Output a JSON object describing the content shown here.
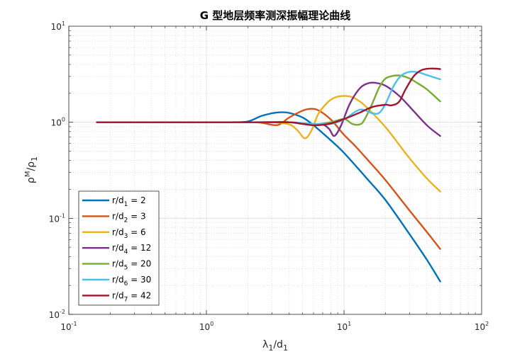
{
  "chart_data": {
    "type": "line",
    "title": "G 型地层频率测深振幅理论曲线",
    "xlabel": {
      "main": "λ",
      "sub1": "1",
      "mid": "/d",
      "sub2": "1"
    },
    "ylabel": {
      "main": "ρ",
      "sup": "M",
      "mid": "/ρ",
      "sub": "1"
    },
    "xscale": "log",
    "yscale": "log",
    "xlim": [
      0.1,
      100
    ],
    "ylim": [
      0.01,
      10
    ],
    "xticks": [
      {
        "value": 0.1,
        "base": "10",
        "exp": "-1"
      },
      {
        "value": 1,
        "base": "10",
        "exp": "0"
      },
      {
        "value": 10,
        "base": "10",
        "exp": "1"
      },
      {
        "value": 100,
        "base": "10",
        "exp": "2"
      }
    ],
    "yticks": [
      {
        "value": 0.01,
        "base": "10",
        "exp": "-2"
      },
      {
        "value": 0.1,
        "base": "10",
        "exp": "-1"
      },
      {
        "value": 1,
        "base": "10",
        "exp": "0"
      },
      {
        "value": 10,
        "base": "10",
        "exp": "1"
      }
    ],
    "grid": true,
    "legend_position": "bottom-left",
    "series": [
      {
        "label_main": "r/d",
        "label_sub": "1",
        "label_val": " = 2",
        "color": "#0072BD",
        "x": [
          0.16,
          0.5,
          1.0,
          1.5,
          2.0,
          2.5,
          3.0,
          3.5,
          4.0,
          5.0,
          6.0,
          8.0,
          10,
          15,
          20,
          30,
          40,
          50
        ],
        "y": [
          1.0,
          1.0,
          1.0,
          1.0,
          1.02,
          1.16,
          1.24,
          1.27,
          1.25,
          1.12,
          0.93,
          0.65,
          0.48,
          0.25,
          0.155,
          0.068,
          0.037,
          0.022
        ]
      },
      {
        "label_main": "r/d",
        "label_sub": "2",
        "label_val": " = 3",
        "color": "#D95319",
        "x": [
          0.16,
          0.5,
          1.0,
          2.0,
          2.5,
          3.0,
          3.4,
          4.0,
          5.0,
          5.7,
          6.5,
          8.0,
          10,
          12,
          15,
          20,
          30,
          40,
          50
        ],
        "y": [
          1.0,
          1.0,
          1.0,
          1.0,
          0.99,
          0.94,
          0.95,
          1.12,
          1.32,
          1.38,
          1.33,
          1.07,
          0.74,
          0.57,
          0.4,
          0.25,
          0.12,
          0.072,
          0.048
        ]
      },
      {
        "label_main": "r/d",
        "label_sub": "3",
        "label_val": " = 6",
        "color": "#EDB120",
        "x": [
          0.16,
          1.0,
          2.0,
          3.0,
          4.0,
          4.6,
          5.2,
          5.8,
          6.5,
          7.5,
          8.5,
          10,
          11.5,
          13,
          15,
          20,
          25,
          30,
          40,
          50
        ],
        "y": [
          1.0,
          1.0,
          1.0,
          1.0,
          0.95,
          0.82,
          0.68,
          0.82,
          1.22,
          1.58,
          1.8,
          1.88,
          1.82,
          1.65,
          1.38,
          0.89,
          0.59,
          0.42,
          0.26,
          0.19
        ]
      },
      {
        "label_main": "r/d",
        "label_sub": "4",
        "label_val": " = 12",
        "color": "#7E2F8E",
        "x": [
          0.16,
          2.0,
          3.0,
          4.0,
          5.0,
          6.0,
          7.0,
          7.8,
          8.5,
          9.5,
          11,
          13,
          15,
          17,
          20,
          25,
          30,
          40,
          50
        ],
        "y": [
          1.0,
          1.0,
          1.0,
          1.0,
          0.96,
          0.94,
          0.95,
          0.85,
          0.72,
          0.92,
          1.55,
          2.25,
          2.55,
          2.57,
          2.4,
          1.9,
          1.45,
          0.93,
          0.72
        ]
      },
      {
        "label_main": "r/d",
        "label_sub": "5",
        "label_val": " = 20",
        "color": "#77AC30",
        "x": [
          0.16,
          2.0,
          4.0,
          6.0,
          8.0,
          10,
          11.5,
          13,
          14,
          16,
          18,
          20,
          23,
          26,
          30,
          35,
          40,
          50
        ],
        "y": [
          1.0,
          1.0,
          1.0,
          0.95,
          1.0,
          1.08,
          0.96,
          0.95,
          1.05,
          1.55,
          2.3,
          2.85,
          3.05,
          3.05,
          2.85,
          2.5,
          2.2,
          1.65
        ]
      },
      {
        "label_main": "r/d",
        "label_sub": "6",
        "label_val": " = 30",
        "color": "#4DBEEE",
        "x": [
          0.16,
          2.0,
          4.0,
          6.0,
          8.0,
          10,
          13,
          16,
          18,
          20,
          23,
          26,
          30,
          35,
          40,
          50
        ],
        "y": [
          1.0,
          1.0,
          1.0,
          0.96,
          0.96,
          1.07,
          1.35,
          1.24,
          1.25,
          1.55,
          2.4,
          3.05,
          3.35,
          3.3,
          3.1,
          2.8
        ]
      },
      {
        "label_main": "r/d",
        "label_sub": "7",
        "label_val": " = 42",
        "color": "#A2142F",
        "x": [
          0.16,
          2.0,
          4.0,
          5.0,
          6.0,
          7.0,
          8.0,
          10,
          13,
          16,
          20,
          22,
          25,
          28,
          32,
          36,
          40,
          45,
          50
        ],
        "y": [
          1.0,
          1.0,
          1.0,
          0.96,
          0.93,
          0.94,
          0.97,
          1.08,
          1.26,
          1.44,
          1.52,
          1.5,
          1.62,
          2.2,
          3.0,
          3.45,
          3.6,
          3.62,
          3.58
        ]
      }
    ]
  }
}
